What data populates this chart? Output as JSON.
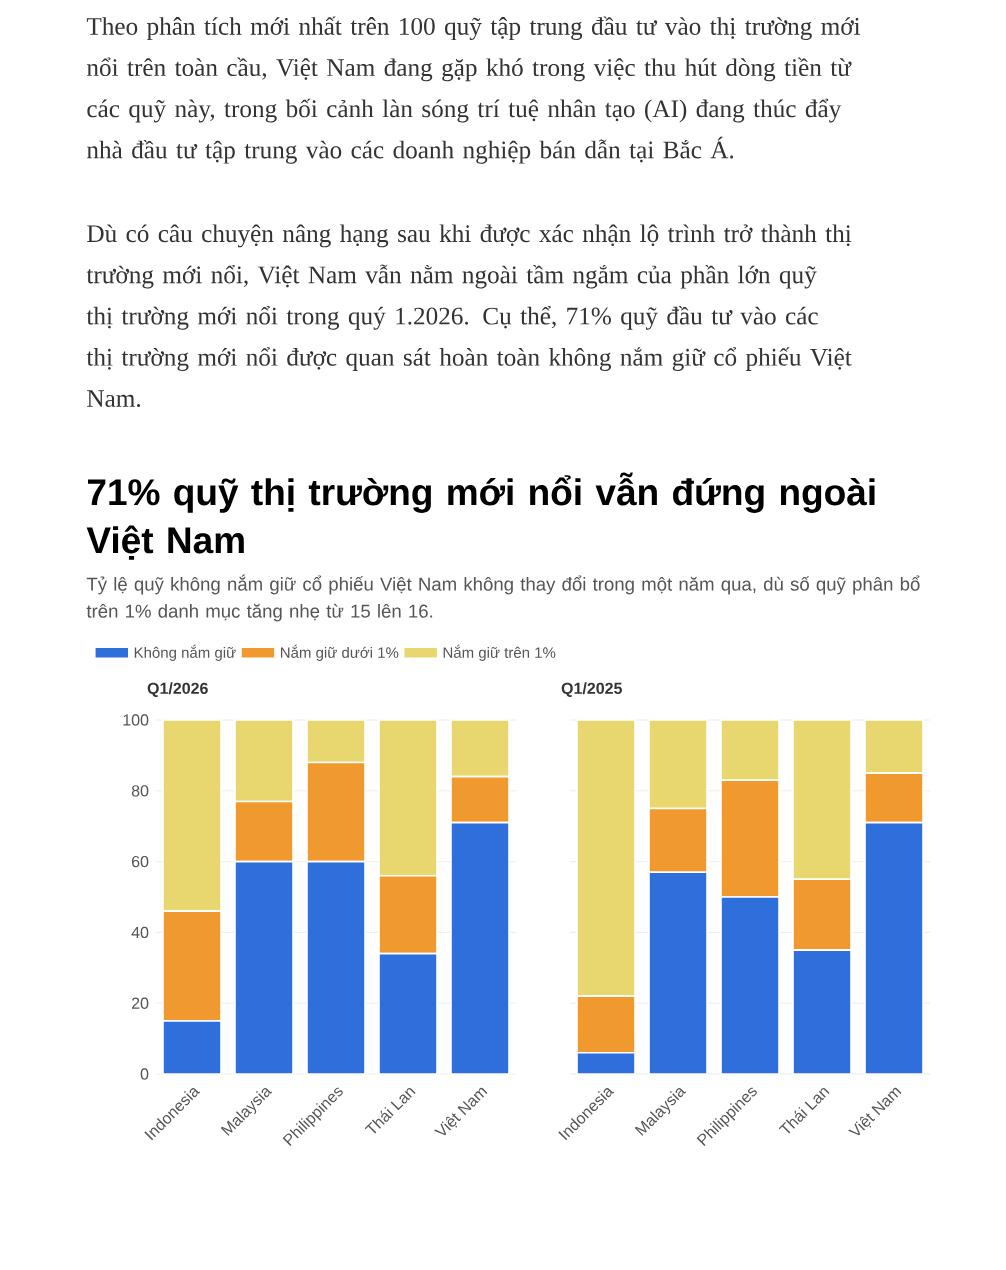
{
  "chart_data": [
    {
      "type": "other",
      "title": "71% quỹ thị trường mới nổi vẫn đứng ngoài Việt Nam",
      "subtitle": "Tỷ lệ quỹ không nắm giữ cổ phiếu Việt Nam không thay đổi trong một năm qua, dù số quỹ phân bổ trên 1% danh mục tăng nhẹ từ 15 lên 16.",
      "annotations": [
        "Theo phân tích mới nhất trên 100 quỹ tập trung đầu tư vào thị trường mới nổi trên toàn cầu, Việt Nam đang gặp khó trong việc thu hút dòng tiền từ các quỹ này, trong bối cảnh làn sóng trí tuệ nhân tạo (AI) đang thúc đẩy nhà đầu tư tập trung vào các doanh nghiệp bán dẫn tại Bắc Á.",
        "Dù có câu chuyện nâng hạng sau khi được xác nhận lộ trình trở thành thị trường mới nổi, Việt Nam vẫn nằm ngoài tầm ngắm của phần lớn quỹ thị trường mới nổi trong quý 1.2026. Cụ thể, 71% quỹ đầu tư vào các thị trường mới nổi được quan sát hoàn toàn không nắm giữ cổ phiếu Việt Nam."
      ]
    },
    {
      "type": "bar",
      "title": "Q1/2026",
      "stacked": true,
      "categories": [
        "Indonesia",
        "Malaysia",
        "Philippines",
        "Thái Lan",
        "Việt Nam"
      ],
      "series": [
        {
          "name": "Không nắm giữ",
          "color": "#2f6fdc",
          "values": [
            15,
            60,
            60,
            34,
            71
          ]
        },
        {
          "name": "Nắm giữ dưới 1%",
          "color": "#f0992f",
          "values": [
            31,
            17,
            28,
            22,
            13
          ]
        },
        {
          "name": "Nắm giữ trên 1%",
          "color": "#e8d66e",
          "values": [
            54,
            23,
            12,
            44,
            16
          ]
        }
      ],
      "ylim": [
        0,
        100
      ],
      "yticks": [
        0,
        20,
        40,
        60,
        80,
        100
      ],
      "grid": "y",
      "legend": "top"
    },
    {
      "type": "bar",
      "title": "Q1/2025",
      "stacked": true,
      "categories": [
        "Indonesia",
        "Malaysia",
        "Philippines",
        "Thái Lan",
        "Việt Nam"
      ],
      "series": [
        {
          "color": "#2f6fdc",
          "values": [
            6,
            57,
            50,
            35,
            71
          ]
        },
        {
          "color": "#f0992f",
          "values": [
            16,
            18,
            33,
            20,
            14
          ]
        },
        {
          "color": "#e8d66e",
          "values": [
            78,
            25,
            17,
            45,
            15
          ]
        }
      ],
      "ylim": [
        0,
        100
      ],
      "yticks": [
        0,
        20,
        40,
        60,
        80,
        100
      ],
      "grid": "y",
      "tick_labels": "x"
    }
  ]
}
